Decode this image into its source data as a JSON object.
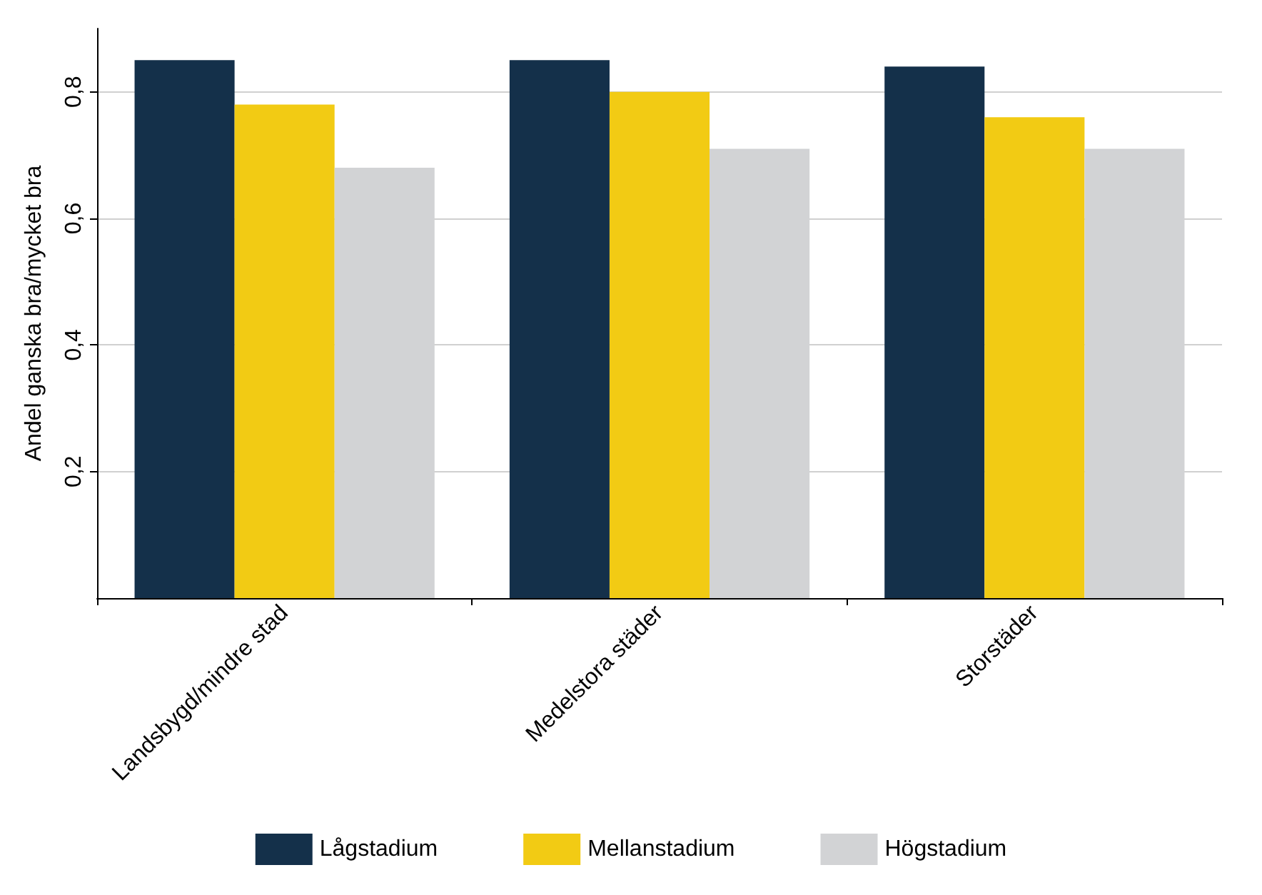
{
  "chart_data": {
    "type": "bar",
    "ylabel": "Andel ganska bra/mycket bra",
    "categories": [
      "Landsbygd/mindre stad",
      "Medelstora städer",
      "Storstäder"
    ],
    "series": [
      {
        "name": "Lågstadium",
        "color": "#14304a",
        "values": [
          0.85,
          0.85,
          0.84
        ]
      },
      {
        "name": "Mellanstadium",
        "color": "#f2cb14",
        "values": [
          0.78,
          0.8,
          0.76
        ]
      },
      {
        "name": "Högstadium",
        "color": "#d2d3d5",
        "values": [
          0.68,
          0.71,
          0.71
        ]
      }
    ],
    "ylim": [
      0,
      0.9
    ],
    "yticks": [
      {
        "value": 0.2,
        "label": "0,2"
      },
      {
        "value": 0.4,
        "label": "0,4"
      },
      {
        "value": 0.6,
        "label": "0,6"
      },
      {
        "value": 0.8,
        "label": "0,8"
      }
    ],
    "grid": "y",
    "legend": "bottom"
  }
}
